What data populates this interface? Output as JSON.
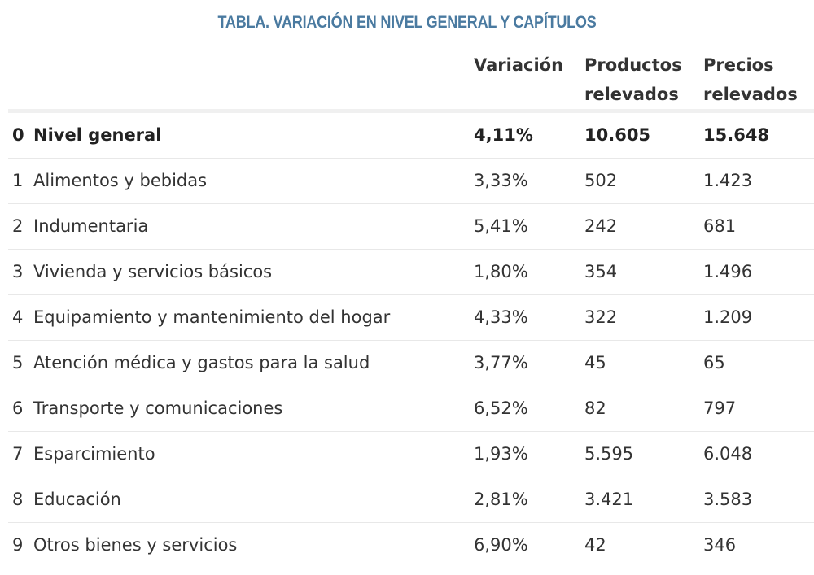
{
  "table": {
    "title": "TABLA. VARIACIÓN EN NIVEL GENERAL Y CAPÍTULOS",
    "headers": {
      "variacion": "Variación",
      "productos_line1": "Productos",
      "productos_line2": "relevados",
      "precios_line1": "Precios",
      "precios_line2": "relevados"
    },
    "rows": [
      {
        "num": "0",
        "name": "Nivel general",
        "variacion": "4,11%",
        "productos": "10.605",
        "precios": "15.648"
      },
      {
        "num": "1",
        "name": "Alimentos y bebidas",
        "variacion": "3,33%",
        "productos": "502",
        "precios": "1.423"
      },
      {
        "num": "2",
        "name": "Indumentaria",
        "variacion": "5,41%",
        "productos": "242",
        "precios": "681"
      },
      {
        "num": "3",
        "name": "Vivienda y servicios básicos",
        "variacion": "1,80%",
        "productos": "354",
        "precios": "1.496"
      },
      {
        "num": "4",
        "name": "Equipamiento y mantenimiento del hogar",
        "variacion": "4,33%",
        "productos": "322",
        "precios": "1.209"
      },
      {
        "num": "5",
        "name": "Atención médica y gastos para la salud",
        "variacion": "3,77%",
        "productos": "45",
        "precios": "65"
      },
      {
        "num": "6",
        "name": "Transporte y comunicaciones",
        "variacion": "6,52%",
        "productos": "82",
        "precios": "797"
      },
      {
        "num": "7",
        "name": "Esparcimiento",
        "variacion": "1,93%",
        "productos": "5.595",
        "precios": "6.048"
      },
      {
        "num": "8",
        "name": "Educación",
        "variacion": "2,81%",
        "productos": "3.421",
        "precios": "3.583"
      },
      {
        "num": "9",
        "name": "Otros bienes y servicios",
        "variacion": "6,90%",
        "productos": "42",
        "precios": "346"
      }
    ]
  }
}
